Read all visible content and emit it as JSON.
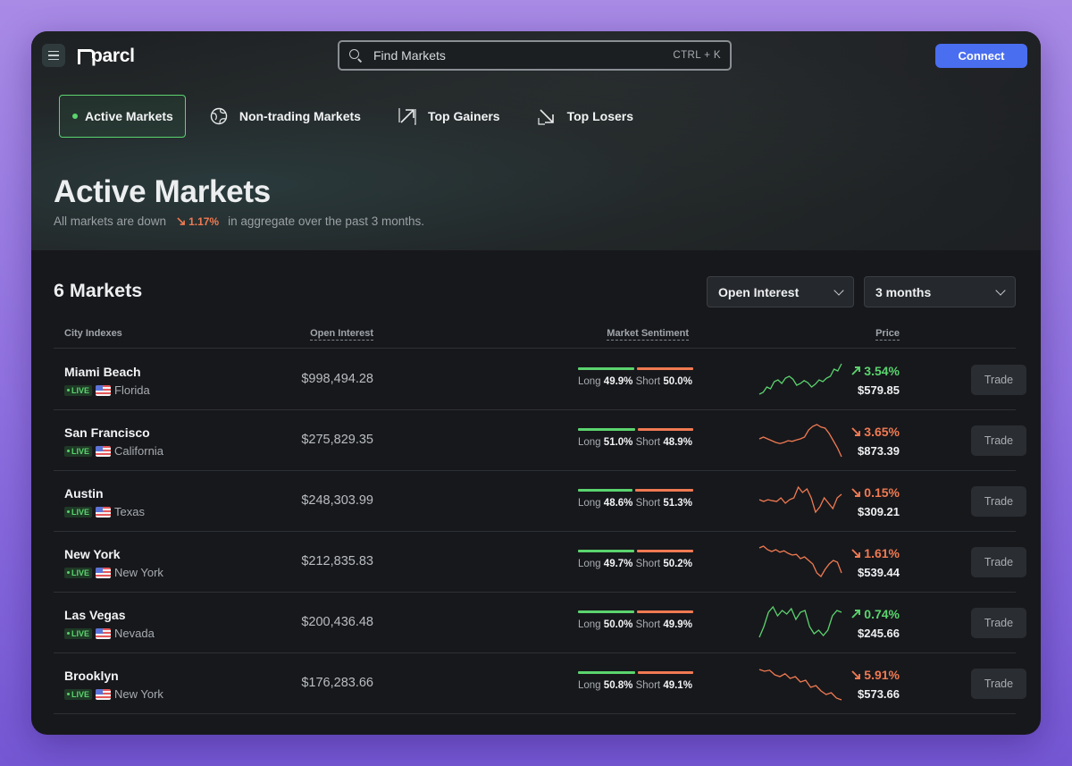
{
  "app": {
    "logo": "parcl",
    "search": {
      "placeholder": "Find Markets",
      "shortcut": "CTRL + K"
    },
    "connect_label": "Connect"
  },
  "tabs": [
    {
      "label": "Active Markets",
      "icon": "live-dot-icon",
      "active": true
    },
    {
      "label": "Non-trading Markets",
      "icon": "globe-icon",
      "active": false
    },
    {
      "label": "Top Gainers",
      "icon": "arrow-up-right-icon",
      "active": false
    },
    {
      "label": "Top Losers",
      "icon": "arrow-down-right-icon",
      "active": false
    }
  ],
  "hero": {
    "title": "Active Markets",
    "sub_before": "All markets are down",
    "change": "1.17%",
    "sub_after": "in aggregate over the past 3 months."
  },
  "markets_title": "6 Markets",
  "filters": {
    "sort": "Open Interest",
    "period": "3 months"
  },
  "columns": {
    "city": "City Indexes",
    "open_interest": "Open Interest",
    "sentiment": "Market Sentiment",
    "price": "Price"
  },
  "labels": {
    "live": "LIVE",
    "long": "Long",
    "short": "Short",
    "trade": "Trade"
  },
  "colors": {
    "accent": "#4a6ef0",
    "up": "#5bd46e",
    "down": "#f07a52"
  },
  "rows": [
    {
      "city": "Miami Beach",
      "state": "Florida",
      "open_interest": "$998,494.28",
      "long": "49.9%",
      "short": "50.0%",
      "change": "3.54%",
      "direction": "up",
      "price": "$579.85",
      "spark": [
        0.1,
        0.15,
        0.3,
        0.25,
        0.45,
        0.5,
        0.4,
        0.55,
        0.6,
        0.52,
        0.35,
        0.4,
        0.48,
        0.42,
        0.3,
        0.38,
        0.5,
        0.45,
        0.55,
        0.6,
        0.8,
        0.75,
        0.95
      ]
    },
    {
      "city": "San Francisco",
      "state": "California",
      "open_interest": "$275,829.35",
      "long": "51.0%",
      "short": "48.9%",
      "change": "3.65%",
      "direction": "down",
      "price": "$873.39",
      "spark": [
        0.55,
        0.6,
        0.55,
        0.5,
        0.45,
        0.42,
        0.45,
        0.5,
        0.48,
        0.52,
        0.55,
        0.6,
        0.8,
        0.9,
        0.95,
        0.88,
        0.85,
        0.7,
        0.5,
        0.3,
        0.05
      ]
    },
    {
      "city": "Austin",
      "state": "Texas",
      "open_interest": "$248,303.99",
      "long": "48.6%",
      "short": "51.3%",
      "change": "0.15%",
      "direction": "down",
      "price": "$309.21",
      "spark": [
        0.55,
        0.5,
        0.55,
        0.52,
        0.5,
        0.6,
        0.45,
        0.55,
        0.6,
        0.9,
        0.75,
        0.85,
        0.6,
        0.2,
        0.35,
        0.6,
        0.45,
        0.3,
        0.6,
        0.7
      ]
    },
    {
      "city": "New York",
      "state": "New York",
      "open_interest": "$212,835.83",
      "long": "49.7%",
      "short": "50.2%",
      "change": "1.61%",
      "direction": "down",
      "price": "$539.44",
      "spark": [
        0.9,
        0.95,
        0.85,
        0.8,
        0.85,
        0.78,
        0.82,
        0.75,
        0.7,
        0.72,
        0.6,
        0.65,
        0.55,
        0.45,
        0.2,
        0.1,
        0.3,
        0.45,
        0.55,
        0.5,
        0.2
      ]
    },
    {
      "city": "Las Vegas",
      "state": "Nevada",
      "open_interest": "$200,436.48",
      "long": "50.0%",
      "short": "49.9%",
      "change": "0.74%",
      "direction": "up",
      "price": "$245.66",
      "spark": [
        0.1,
        0.4,
        0.8,
        0.95,
        0.7,
        0.85,
        0.75,
        0.9,
        0.6,
        0.8,
        0.85,
        0.4,
        0.2,
        0.3,
        0.15,
        0.3,
        0.7,
        0.85,
        0.8
      ]
    },
    {
      "city": "Brooklyn",
      "state": "New York",
      "open_interest": "$176,283.66",
      "long": "50.8%",
      "short": "49.1%",
      "change": "5.91%",
      "direction": "down",
      "price": "$573.66",
      "spark": [
        0.9,
        0.85,
        0.88,
        0.75,
        0.7,
        0.78,
        0.65,
        0.7,
        0.55,
        0.6,
        0.4,
        0.45,
        0.3,
        0.2,
        0.25,
        0.1,
        0.05
      ]
    }
  ]
}
